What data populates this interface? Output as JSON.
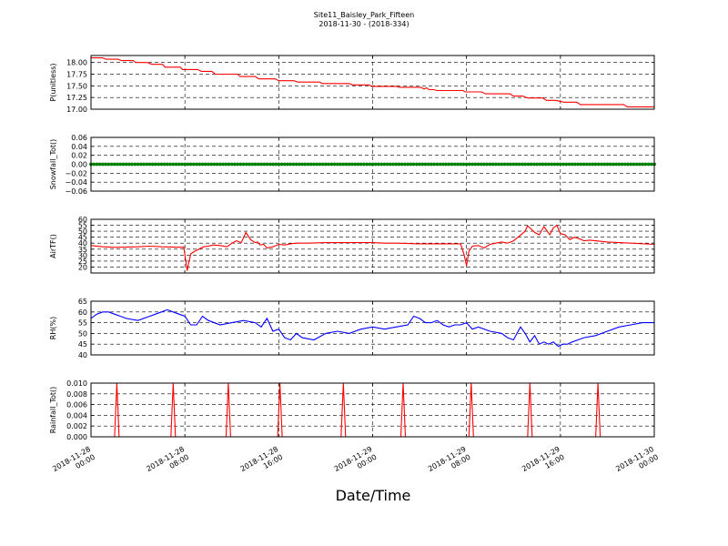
{
  "chart_data": {
    "type": "line",
    "title": "Site11_Baisley_Park_Fifteen",
    "subtitle": "2018-11-30 - (2018-334)",
    "xlabel": "Date/Time",
    "x_ticks": [
      {
        "line1": "2018-11-28",
        "line2": "00:00",
        "hours": 0
      },
      {
        "line1": "2018-11-28",
        "line2": "08:00",
        "hours": 8
      },
      {
        "line1": "2018-11-28",
        "line2": "16:00",
        "hours": 16
      },
      {
        "line1": "2018-11-29",
        "line2": "00:00",
        "hours": 24
      },
      {
        "line1": "2018-11-29",
        "line2": "08:00",
        "hours": 32
      },
      {
        "line1": "2018-11-29",
        "line2": "16:00",
        "hours": 40
      },
      {
        "line1": "2018-11-30",
        "line2": "00:00",
        "hours": 48
      }
    ],
    "xlim_hours": [
      0,
      48
    ],
    "grid": true,
    "panels": [
      {
        "ylabel": "P(unitless)",
        "ylim": [
          17.0,
          18.15
        ],
        "yticks": [
          17.0,
          17.25,
          17.5,
          17.75,
          18.0
        ],
        "ytick_labels": [
          "17.00",
          "17.25",
          "17.50",
          "17.75",
          "18.00"
        ],
        "color": "#ff0000",
        "series": {
          "x": [
            0,
            1,
            1.3,
            2.3,
            2.6,
            3.6,
            3.8,
            4.8,
            5.2,
            6.1,
            6.3,
            7.6,
            7.8,
            9.1,
            9.4,
            10.3,
            10.6,
            12.5,
            12.7,
            14.0,
            14.3,
            15.7,
            16.0,
            17.3,
            17.6,
            19.5,
            19.7,
            22.0,
            22.3,
            23.7,
            23.9,
            26.0,
            26.3,
            28.1,
            28.4,
            28.6,
            28.8,
            29.2,
            29.5,
            31.7,
            31.9,
            33.3,
            33.6,
            35.7,
            36.0,
            36.8,
            37.2,
            38.5,
            38.8,
            39.6,
            40.3,
            41.4,
            41.7,
            43.0,
            43.3,
            45.4,
            45.7,
            48.0
          ],
          "y": [
            18.1,
            18.1,
            18.07,
            18.07,
            18.04,
            18.04,
            18.0,
            18.0,
            17.96,
            17.96,
            17.9,
            17.9,
            17.85,
            17.85,
            17.81,
            17.81,
            17.75,
            17.75,
            17.7,
            17.7,
            17.65,
            17.65,
            17.61,
            17.61,
            17.58,
            17.58,
            17.55,
            17.55,
            17.52,
            17.52,
            17.49,
            17.49,
            17.47,
            17.47,
            17.43,
            17.46,
            17.42,
            17.42,
            17.4,
            17.4,
            17.37,
            17.37,
            17.33,
            17.33,
            17.28,
            17.28,
            17.24,
            17.24,
            17.19,
            17.19,
            17.15,
            17.15,
            17.1,
            17.1,
            17.1,
            17.1,
            17.05,
            17.05
          ]
        }
      },
      {
        "ylabel": "Snowfall_Tot()",
        "ylim": [
          -0.06,
          0.06
        ],
        "yticks": [
          -0.06,
          -0.04,
          -0.02,
          0.0,
          0.02,
          0.04,
          0.06
        ],
        "ytick_labels": [
          "−0.06",
          "−0.04",
          "−0.02",
          "0.00",
          "0.02",
          "0.04",
          "0.06"
        ],
        "color": "#008000",
        "constant_value": 0.0,
        "marker_interval_hours": 0.25
      },
      {
        "ylabel": "AirTF()",
        "ylim": [
          15,
          60
        ],
        "yticks": [
          20,
          25,
          30,
          35,
          40,
          45,
          50,
          55,
          60
        ],
        "ytick_labels": [
          "20",
          "25",
          "30",
          "35",
          "40",
          "45",
          "50",
          "55",
          "60"
        ],
        "color": "#ff0000",
        "series": {
          "x": [
            0,
            1,
            2,
            4,
            5,
            6,
            7.8,
            7.9,
            8.0,
            8.2,
            8.3,
            8.5,
            8.8,
            9.2,
            9.6,
            10.0,
            10.4,
            11.0,
            11.6,
            12.0,
            12.4,
            12.8,
            13.2,
            13.6,
            14.0,
            14.2,
            14.4,
            14.7,
            15.0,
            15.5,
            16.0,
            16.5,
            17.0,
            17.5,
            18.0,
            18.5,
            20,
            24,
            25,
            26,
            28,
            29,
            30,
            31.5,
            31.8,
            32.0,
            32.2,
            32.5,
            33.0,
            33.5,
            34.0,
            34.5,
            35.0,
            35.5,
            36.0,
            36.5,
            37.0,
            37.2,
            37.5,
            37.8,
            38.2,
            38.6,
            38.8,
            39.1,
            39.4,
            39.7,
            40.0,
            40.4,
            40.8,
            41.2,
            41.5,
            41.8,
            42.0,
            42.5,
            43.0,
            44,
            46,
            48
          ],
          "y": [
            38,
            37,
            36.5,
            37,
            37.5,
            37,
            36.5,
            37,
            30,
            17,
            22,
            31,
            33,
            35,
            37,
            37.5,
            38.5,
            38,
            37,
            40,
            42,
            40.5,
            49,
            43,
            40.5,
            41,
            38.5,
            39,
            36,
            37,
            39,
            38.5,
            39.5,
            40,
            40,
            40,
            40.5,
            40.5,
            40,
            40,
            39.5,
            39.5,
            39.5,
            39.5,
            30,
            21,
            33,
            37.5,
            38,
            36,
            39,
            40,
            41,
            40,
            42,
            46,
            50,
            54.5,
            52,
            49,
            47,
            54,
            51,
            47,
            53,
            55,
            48,
            47,
            43,
            45,
            44,
            43,
            42,
            42.5,
            42,
            41,
            40,
            39
          ]
        }
      },
      {
        "ylabel": "RH(%)",
        "ylim": [
          40,
          65
        ],
        "yticks": [
          40,
          45,
          50,
          55,
          60,
          65
        ],
        "ytick_labels": [
          "40",
          "45",
          "50",
          "55",
          "60",
          "65"
        ],
        "color": "#0000ff",
        "series": {
          "x": [
            0,
            0.5,
            1,
            1.5,
            2,
            2.5,
            3,
            4,
            5,
            5.5,
            6,
            6.5,
            7,
            7.5,
            8,
            8.5,
            9,
            9.5,
            10,
            11,
            12,
            13,
            14,
            14.5,
            15,
            15.5,
            16,
            16.5,
            17,
            17.5,
            18,
            19,
            20,
            21,
            22,
            23,
            24,
            25,
            26,
            27,
            27.5,
            28,
            28.5,
            29,
            29.5,
            30,
            30.5,
            31,
            31.5,
            32,
            32.5,
            33,
            34,
            35,
            35.5,
            36,
            36.3,
            36.6,
            37,
            37.4,
            37.8,
            38.2,
            38.6,
            39,
            39.4,
            39.8,
            40.2,
            40.6,
            41,
            41.5,
            42,
            43,
            44,
            45,
            46,
            47,
            48
          ],
          "y": [
            57,
            59,
            60,
            60,
            59,
            58,
            57,
            56,
            58,
            59,
            60,
            61,
            60,
            59,
            58,
            54,
            54,
            58,
            56,
            54,
            55,
            56,
            55,
            53,
            57,
            51,
            52,
            48,
            47,
            50,
            48,
            47,
            50,
            51,
            50,
            52,
            53,
            52,
            53,
            54,
            58,
            57,
            55,
            55,
            56,
            54,
            53,
            54,
            54,
            55,
            52,
            53,
            51,
            50,
            48,
            47,
            50,
            53,
            50,
            46,
            49,
            45,
            46,
            45,
            46,
            44,
            45,
            45,
            46,
            47,
            48,
            49,
            51,
            53,
            54,
            55,
            55
          ]
        }
      },
      {
        "ylabel": "Rainfall_Tot()",
        "ylim": [
          0,
          0.01
        ],
        "yticks": [
          0.0,
          0.002,
          0.004,
          0.006,
          0.008,
          0.01
        ],
        "ytick_labels": [
          "0.000",
          "0.002",
          "0.004",
          "0.006",
          "0.008",
          "0.010"
        ],
        "color": "#ff0000",
        "spikes": {
          "x": [
            2.2,
            7.0,
            11.7,
            16.1,
            21.5,
            26.6,
            32.4,
            37.4,
            43.2
          ],
          "value": 0.01
        }
      }
    ]
  }
}
